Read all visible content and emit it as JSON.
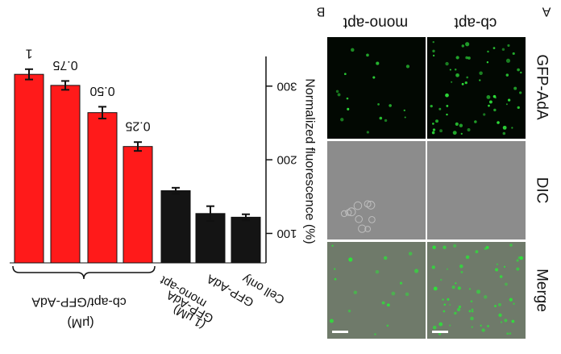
{
  "figure": {
    "panel_labels": {
      "a": "A",
      "b": "B"
    },
    "micro": {
      "columns": [
        "cb-apt",
        "mono-apt"
      ],
      "rows": [
        "GFP-AdA",
        "DIC",
        "Merge"
      ],
      "colors": {
        "gfp_bg": "#020802",
        "gfp_dot": "#2ee03a",
        "dic_bg": "#8c8c8c",
        "merge_bg": "#6f7a6a",
        "scale_bar": "#ffffff"
      }
    },
    "bar_colors": {
      "red": "#ff1a1a",
      "black": "#141414"
    }
  },
  "chart_data": {
    "type": "bar",
    "orientation": "image rotated 180 degrees",
    "ylabel": "Normalized fluorescence (%)",
    "yticks": [
      100,
      200,
      300
    ],
    "ylim": [
      60,
      360
    ],
    "categories": [
      "1",
      "0.75",
      "0.50",
      "0.25",
      "mono-apt GFP-AdA (1 μM)",
      "GFP-AdA",
      "Cell only"
    ],
    "values": [
      316,
      301,
      264,
      218,
      158,
      127,
      122
    ],
    "errors": [
      7,
      6,
      8,
      6,
      4,
      10,
      4
    ],
    "data_labels": [
      "1",
      "0.75",
      "0.50",
      "0.25",
      "",
      "",
      ""
    ],
    "colors": [
      "red",
      "red",
      "red",
      "red",
      "black",
      "black",
      "black"
    ],
    "group_labels": [
      {
        "lines": [
          "cb-apt/GFP-AdA",
          "(μM)"
        ]
      },
      {
        "lines": [
          "mono-apt",
          "GFP-AdA",
          "(1 μM)"
        ]
      },
      {
        "lines": [
          "GFP-AdA"
        ]
      },
      {
        "lines": [
          "Cell only"
        ]
      }
    ]
  }
}
